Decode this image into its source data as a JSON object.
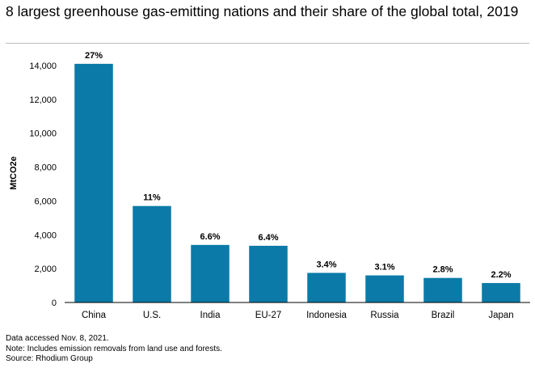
{
  "chart_data": {
    "type": "bar",
    "title": "8 largest greenhouse gas-emitting nations and their share of the global total, 2019",
    "xlabel": "",
    "ylabel": "MtCO2e",
    "categories": [
      "China",
      "U.S.",
      "India",
      "EU-27",
      "Indonesia",
      "Russia",
      "Brazil",
      "Japan"
    ],
    "values": [
      14100,
      5700,
      3400,
      3350,
      1750,
      1600,
      1450,
      1150
    ],
    "data_labels": [
      "27%",
      "11%",
      "6.6%",
      "6.4%",
      "3.4%",
      "3.1%",
      "2.8%",
      "2.2%"
    ],
    "ylim": [
      0,
      15000
    ],
    "yticks": [
      0,
      2000,
      4000,
      6000,
      8000,
      10000,
      12000,
      14000
    ],
    "ytick_labels": [
      "0",
      "2,000",
      "4,000",
      "6,000",
      "8,000",
      "10,000",
      "12,000",
      "14,000"
    ],
    "grid": false,
    "bar_color": "#0b7aa8"
  },
  "notes": [
    "Data accessed Nov. 8, 2021.",
    "Note: Includes emission removals from land use and forests.",
    "Source: Rhodium Group"
  ]
}
